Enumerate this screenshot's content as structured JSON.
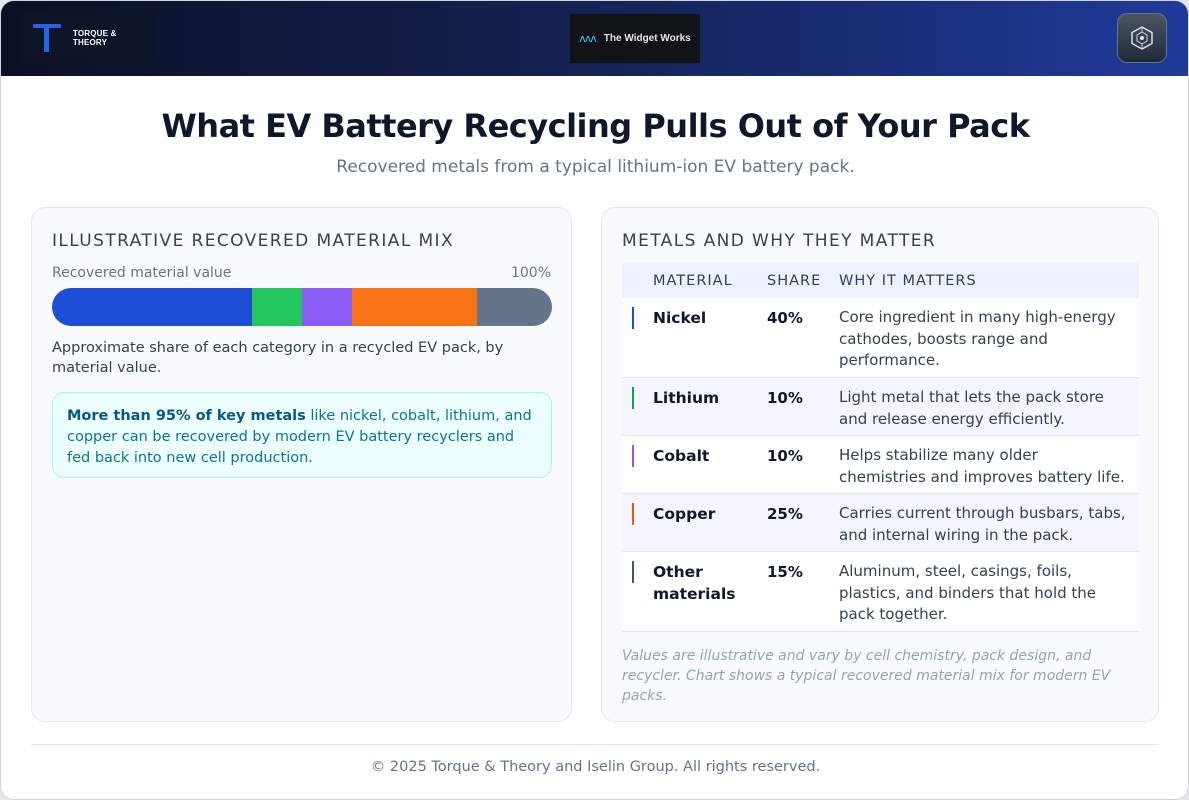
{
  "header": {
    "left_brand": "TORQUE & THEORY",
    "center_brand": "The Widget Works",
    "center_wave": "ʌʌʌ",
    "right_brand_icon": "cube-network-icon"
  },
  "title": "What EV Battery Recycling Pulls Out of Your Pack",
  "subtitle": "Recovered metals from a typical lithium-ion EV battery pack.",
  "mix_card": {
    "heading": "ILLUSTRATIVE RECOVERED MATERIAL MIX",
    "bar_label": "Recovered material value",
    "bar_total": "100%",
    "caption": "Approximate share of each category in a recycled EV pack, by material value.",
    "callout_bold": "More than 95% of key metals",
    "callout_rest": " like nickel, cobalt, lithium, and copper can be recovered by modern EV battery recyclers and fed back into new cell production."
  },
  "chart_data": {
    "type": "bar",
    "stacked": true,
    "orientation": "horizontal",
    "categories": [
      "Nickel",
      "Lithium",
      "Cobalt",
      "Copper",
      "Other materials"
    ],
    "values": [
      40,
      10,
      10,
      25,
      15
    ],
    "unit": "%",
    "colors": [
      "#1d4ed8",
      "#22c55e",
      "#8b5cf6",
      "#f97316",
      "#64748b"
    ],
    "xlim": [
      0,
      100
    ]
  },
  "metals_card": {
    "heading": "METALS AND WHY THEY MATTER",
    "columns": [
      "MATERIAL",
      "SHARE",
      "WHY IT MATTERS"
    ],
    "rows": [
      {
        "material": "Nickel",
        "share": "40%",
        "why": "Core ingredient in many high-energy cathodes, boosts range and performance.",
        "color": "#1d4ed8"
      },
      {
        "material": "Lithium",
        "share": "10%",
        "why": "Light metal that lets the pack store and release energy efficiently.",
        "color": "#16a34a"
      },
      {
        "material": "Cobalt",
        "share": "10%",
        "why": "Helps stabilize many older chemistries and improves battery life.",
        "color": "#8b5cf6"
      },
      {
        "material": "Copper",
        "share": "25%",
        "why": "Carries current through busbars, tabs, and internal wiring in the pack.",
        "color": "#ea580c"
      },
      {
        "material": "Other materials",
        "share": "15%",
        "why": "Aluminum, steel, casings, foils, plastics, and binders that hold the pack together.",
        "color": "#475569"
      }
    ],
    "note": "Values are illustrative and vary by cell chemistry, pack design, and recycler. Chart shows a typical recovered material mix for modern EV packs."
  },
  "footer": {
    "copyright": "© 2025 Torque & Theory and Iselin Group. All rights reserved."
  }
}
